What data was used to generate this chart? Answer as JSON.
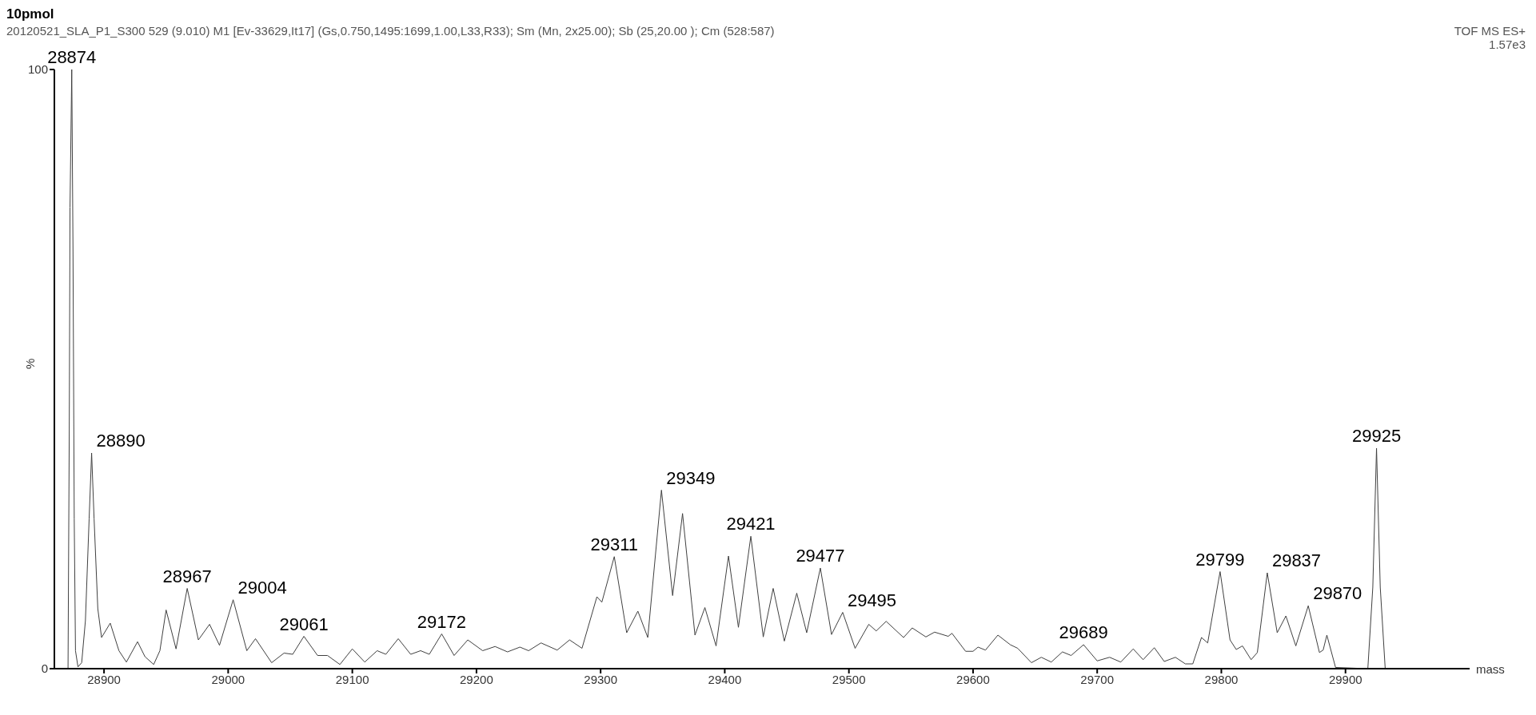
{
  "chart_data": {
    "type": "line",
    "title": "10pmol",
    "subtitle": "20120521_SLA_P1_S300  529 (9.010) M1 [Ev-33629,It17] (Gs,0.750,1495:1699,1.00,L33,R33); Sm (Mn, 2x25.00); Sb (25,20.00 ); Cm (528:587)",
    "xlabel": "mass",
    "ylabel": "%",
    "annotations": [
      "TOF MS ES+",
      "1.57e3",
      {
        "text": "28874",
        "x": 28874,
        "y": 100
      },
      {
        "text": "28890",
        "x": 28890,
        "y": 36
      },
      {
        "text": "28967",
        "x": 28967,
        "y": 13.4
      },
      {
        "text": "29004",
        "x": 29004,
        "y": 11.5
      },
      {
        "text": "29061",
        "x": 29061,
        "y": 5.4
      },
      {
        "text": "29172",
        "x": 29172,
        "y": 5.8
      },
      {
        "text": "29311",
        "x": 29311,
        "y": 18.7
      },
      {
        "text": "29349",
        "x": 29349,
        "y": 29.8
      },
      {
        "text": "29421",
        "x": 29421,
        "y": 22.1
      },
      {
        "text": "29477",
        "x": 29477,
        "y": 16.8
      },
      {
        "text": "29495",
        "x": 29495,
        "y": 9.4
      },
      {
        "text": "29689",
        "x": 29689,
        "y": 4
      },
      {
        "text": "29799",
        "x": 29799,
        "y": 16.2
      },
      {
        "text": "29837",
        "x": 29837,
        "y": 16
      },
      {
        "text": "29870",
        "x": 29870,
        "y": 10.5
      },
      {
        "text": "29925",
        "x": 29925,
        "y": 36.8
      }
    ],
    "xlim": [
      28860,
      30000
    ],
    "xticks": [
      28900,
      29000,
      29100,
      29200,
      29300,
      29400,
      29500,
      29600,
      29700,
      29800,
      29900
    ],
    "ylim": [
      0,
      100
    ],
    "yticks": [
      0,
      100
    ],
    "grid": false,
    "marker": "none",
    "series": [
      {
        "color": "#404040",
        "x": [
          28860,
          28871,
          28872,
          28872.6,
          28874,
          28875,
          28876,
          28877,
          28879,
          28882,
          28885,
          28888,
          28890,
          28892,
          28895,
          28898,
          28905,
          28912,
          28918,
          28927,
          28933,
          28940,
          28945,
          28950,
          28958,
          28967,
          28976,
          28985,
          28993,
          29004,
          29015,
          29022,
          29035,
          29045,
          29052,
          29061,
          29072,
          29080,
          29090,
          29100,
          29110,
          29120,
          29127,
          29137,
          29147,
          29155,
          29162,
          29172,
          29182,
          29193,
          29205,
          29215,
          29225,
          29235,
          29242,
          29252,
          29265,
          29275,
          29285,
          29297,
          29301,
          29311,
          29321,
          29330,
          29338,
          29349,
          29358,
          29366,
          29376,
          29384,
          29393,
          29403,
          29411,
          29421,
          29431,
          29439,
          29448,
          29458,
          29466,
          29477,
          29486,
          29495,
          29505,
          29516,
          29522,
          29530,
          29544,
          29551,
          29562,
          29569,
          29580,
          29583,
          29594,
          29600,
          29604,
          29610,
          29620,
          29630,
          29636,
          29647,
          29655,
          29663,
          29672,
          29679,
          29689,
          29700,
          29710,
          29719,
          29729,
          29737,
          29746,
          29754,
          29763,
          29771,
          29777,
          29784,
          29789,
          29799,
          29807,
          29812,
          29817,
          29824,
          29829,
          29837,
          29845,
          29852,
          29860,
          29870,
          29879,
          29882,
          29885,
          29892,
          29918,
          29922,
          29925,
          29928,
          29932,
          29997
        ],
        "values": [
          0,
          0,
          40,
          77,
          100,
          70,
          25,
          3,
          0.3,
          1,
          8,
          25,
          36,
          25,
          10,
          5.2,
          7.6,
          3,
          1.1,
          4.5,
          2,
          0.7,
          3,
          9.8,
          3.3,
          13.4,
          4.8,
          7.4,
          3.9,
          11.5,
          3,
          5,
          1,
          2.6,
          2.4,
          5.4,
          2.2,
          2.2,
          0.7,
          3.3,
          1.1,
          3,
          2.4,
          5,
          2.4,
          3,
          2.4,
          5.8,
          2.2,
          4.8,
          3,
          3.7,
          2.8,
          3.6,
          3,
          4.3,
          3.1,
          4.8,
          3.4,
          12,
          11.1,
          18.7,
          6,
          9.6,
          5.2,
          29.8,
          12.2,
          25.9,
          5.6,
          10.2,
          3.8,
          18.8,
          6.9,
          22.1,
          5.3,
          13.4,
          4.6,
          12.6,
          6,
          16.8,
          5.7,
          9.4,
          3.4,
          7.4,
          6.3,
          7.9,
          5.2,
          6.8,
          5.3,
          6.1,
          5.4,
          5.9,
          2.9,
          2.9,
          3.6,
          3.1,
          5.6,
          4,
          3.4,
          1,
          1.9,
          1.1,
          2.8,
          2.2,
          4,
          1.3,
          1.9,
          1.1,
          3.3,
          1.5,
          3.5,
          1.2,
          1.9,
          0.8,
          0.8,
          5.2,
          4.3,
          16.2,
          4.8,
          3.2,
          3.8,
          1.5,
          2.7,
          16,
          6,
          8.8,
          3.8,
          10.5,
          2.7,
          3.1,
          5.6,
          0.2,
          0,
          13.6,
          36.8,
          13.6,
          0,
          0
        ]
      }
    ]
  }
}
